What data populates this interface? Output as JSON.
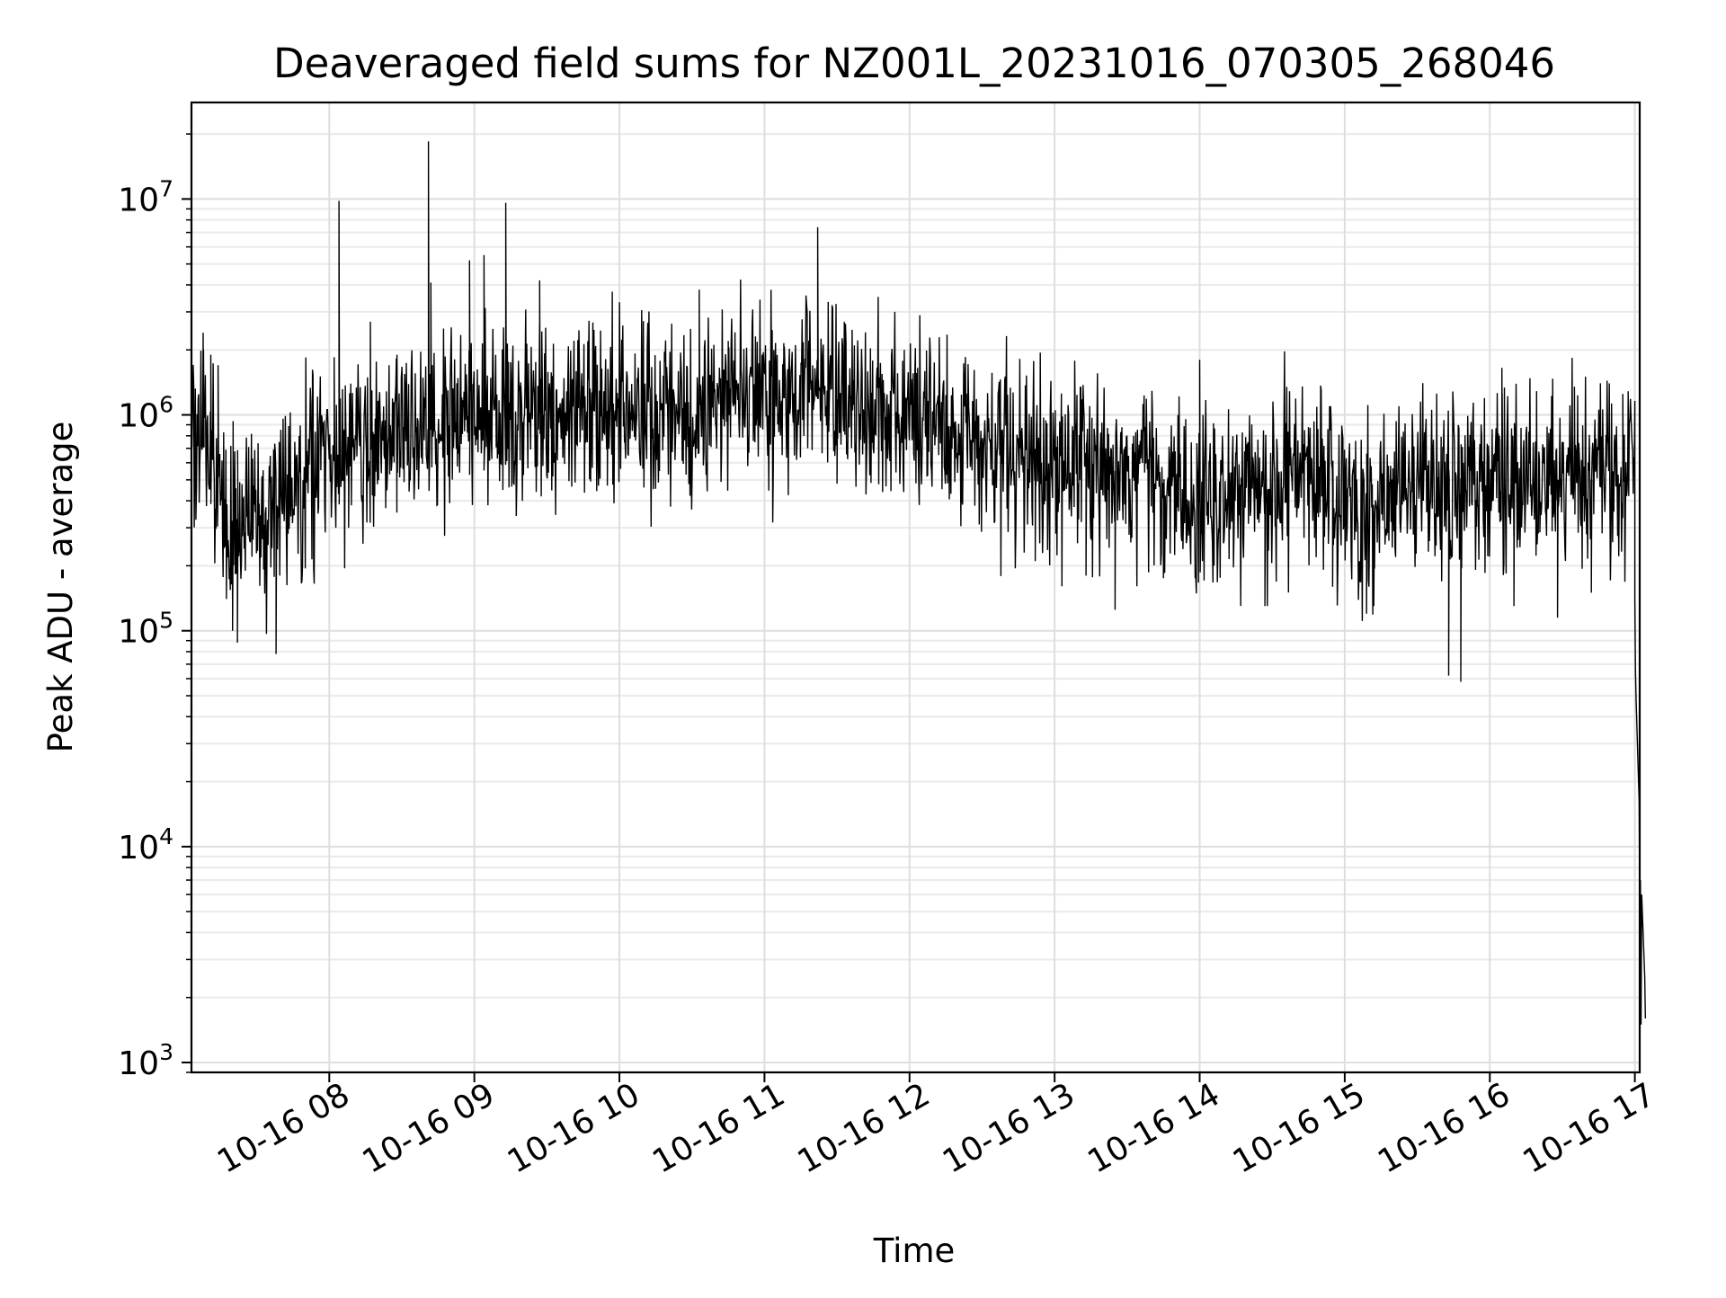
{
  "chart_data": {
    "type": "line",
    "title": "Deaveraged field sums for NZ001L_20231016_070305_268046",
    "xlabel": "Time",
    "ylabel": "Peak ADU - average",
    "yscale": "log",
    "ylim": [
      900,
      28000000
    ],
    "xlim": [
      "2023-10-16 07:03",
      "2023-10-16 17:02"
    ],
    "grid": true,
    "line_color": "#000000",
    "x_ticks": [
      {
        "t": "2023-10-16 08:00",
        "label": "10-16 08"
      },
      {
        "t": "2023-10-16 09:00",
        "label": "10-16 09"
      },
      {
        "t": "2023-10-16 10:00",
        "label": "10-16 10"
      },
      {
        "t": "2023-10-16 11:00",
        "label": "10-16 11"
      },
      {
        "t": "2023-10-16 12:00",
        "label": "10-16 12"
      },
      {
        "t": "2023-10-16 13:00",
        "label": "10-16 13"
      },
      {
        "t": "2023-10-16 14:00",
        "label": "10-16 14"
      },
      {
        "t": "2023-10-16 15:00",
        "label": "10-16 15"
      },
      {
        "t": "2023-10-16 16:00",
        "label": "10-16 16"
      },
      {
        "t": "2023-10-16 17:00",
        "label": "10-16 17"
      }
    ],
    "y_ticks": [
      {
        "value": 1000,
        "base": "10",
        "exp": "3"
      },
      {
        "value": 10000,
        "base": "10",
        "exp": "4"
      },
      {
        "value": 100000,
        "base": "10",
        "exp": "5"
      },
      {
        "value": 1000000,
        "base": "10",
        "exp": "6"
      },
      {
        "value": 10000000,
        "base": "10",
        "exp": "7"
      }
    ],
    "baseline": [
      [
        "2023-10-16 07:03",
        780000
      ],
      [
        "2023-10-16 07:10",
        680000
      ],
      [
        "2023-10-16 07:15",
        480000
      ],
      [
        "2023-10-16 07:20",
        300000
      ],
      [
        "2023-10-16 07:25",
        380000
      ],
      [
        "2023-10-16 07:30",
        430000
      ],
      [
        "2023-10-16 07:35",
        330000
      ],
      [
        "2023-10-16 07:40",
        400000
      ],
      [
        "2023-10-16 07:45",
        470000
      ],
      [
        "2023-10-16 07:50",
        520000
      ],
      [
        "2023-10-16 08:00",
        600000
      ],
      [
        "2023-10-16 08:15",
        680000
      ],
      [
        "2023-10-16 08:30",
        750000
      ],
      [
        "2023-10-16 08:45",
        880000
      ],
      [
        "2023-10-16 09:00",
        1000000
      ],
      [
        "2023-10-16 09:30",
        1020000
      ],
      [
        "2023-10-16 10:00",
        1050000
      ],
      [
        "2023-10-16 10:15",
        1000000
      ],
      [
        "2023-10-16 10:30",
        1080000
      ],
      [
        "2023-10-16 10:45",
        1250000
      ],
      [
        "2023-10-16 11:00",
        1200000
      ],
      [
        "2023-10-16 11:30",
        1180000
      ],
      [
        "2023-10-16 12:00",
        1050000
      ],
      [
        "2023-10-16 12:20",
        900000
      ],
      [
        "2023-10-16 12:30",
        700000
      ],
      [
        "2023-10-16 13:00",
        620000
      ],
      [
        "2023-10-16 13:20",
        560000
      ],
      [
        "2023-10-16 13:40",
        520000
      ],
      [
        "2023-10-16 14:00",
        390000
      ],
      [
        "2023-10-16 14:20",
        450000
      ],
      [
        "2023-10-16 14:40",
        520000
      ],
      [
        "2023-10-16 15:00",
        420000
      ],
      [
        "2023-10-16 15:10",
        320000
      ],
      [
        "2023-10-16 15:20",
        420000
      ],
      [
        "2023-10-16 15:40",
        500000
      ],
      [
        "2023-10-16 16:00",
        520000
      ],
      [
        "2023-10-16 16:20",
        500000
      ],
      [
        "2023-10-16 16:40",
        500000
      ],
      [
        "2023-10-16 16:57",
        500000
      ],
      [
        "2023-10-16 17:00",
        900000
      ]
    ],
    "spikes": [
      [
        "2023-10-16 07:08",
        2000000
      ],
      [
        "2023-10-16 07:11",
        1900000
      ],
      [
        "2023-10-16 07:14",
        1700000
      ],
      [
        "2023-10-16 07:20",
        100000
      ],
      [
        "2023-10-16 07:22",
        88000
      ],
      [
        "2023-10-16 07:38",
        78000
      ],
      [
        "2023-10-16 08:02",
        1850000
      ],
      [
        "2023-10-16 08:04",
        9800000
      ],
      [
        "2023-10-16 08:08",
        300000
      ],
      [
        "2023-10-16 08:17",
        2700000
      ],
      [
        "2023-10-16 08:28",
        1900000
      ],
      [
        "2023-10-16 08:41",
        18500000
      ],
      [
        "2023-10-16 08:42",
        4100000
      ],
      [
        "2023-10-16 08:58",
        5200000
      ],
      [
        "2023-10-16 09:04",
        5500000
      ],
      [
        "2023-10-16 09:13",
        9600000
      ],
      [
        "2023-10-16 09:27",
        4200000
      ],
      [
        "2023-10-16 09:55",
        470000
      ],
      [
        "2023-10-16 10:33",
        3800000
      ],
      [
        "2023-10-16 10:45",
        2200000
      ],
      [
        "2023-10-16 11:08",
        2150000
      ],
      [
        "2023-10-16 11:22",
        7400000
      ],
      [
        "2023-10-16 11:30",
        480000
      ],
      [
        "2023-10-16 12:07",
        1800000
      ],
      [
        "2023-10-16 12:52",
        210000
      ],
      [
        "2023-10-16 13:13",
        180000
      ],
      [
        "2023-10-16 13:25",
        125000
      ],
      [
        "2023-10-16 13:45",
        175000
      ],
      [
        "2023-10-16 14:00",
        1800000
      ],
      [
        "2023-10-16 14:27",
        130000
      ],
      [
        "2023-10-16 14:55",
        160000
      ],
      [
        "2023-10-16 15:09",
        120000
      ],
      [
        "2023-10-16 15:12",
        130000
      ],
      [
        "2023-10-16 15:43",
        62000
      ],
      [
        "2023-10-16 15:48",
        58000
      ],
      [
        "2023-10-16 16:05",
        1650000
      ],
      [
        "2023-10-16 16:10",
        130000
      ],
      [
        "2023-10-16 16:28",
        115000
      ],
      [
        "2023-10-16 16:35",
        1350000
      ],
      [
        "2023-10-16 16:42",
        150000
      ],
      [
        "2023-10-16 16:55",
        1250000
      ]
    ],
    "drop": [
      [
        "2023-10-16 17:00",
        140000
      ],
      [
        "2023-10-16 17:00",
        65000
      ],
      [
        "2023-10-16 17:00",
        48000
      ],
      [
        "2023-10-16 17:01",
        16000
      ],
      [
        "2023-10-16 17:01",
        5000
      ],
      [
        "2023-10-16 17:01",
        7000
      ],
      [
        "2023-10-16 17:01",
        1500
      ],
      [
        "2023-10-16 17:01",
        6000
      ],
      [
        "2023-10-16 17:02",
        2500
      ],
      [
        "2023-10-16 17:02",
        1600
      ]
    ]
  }
}
